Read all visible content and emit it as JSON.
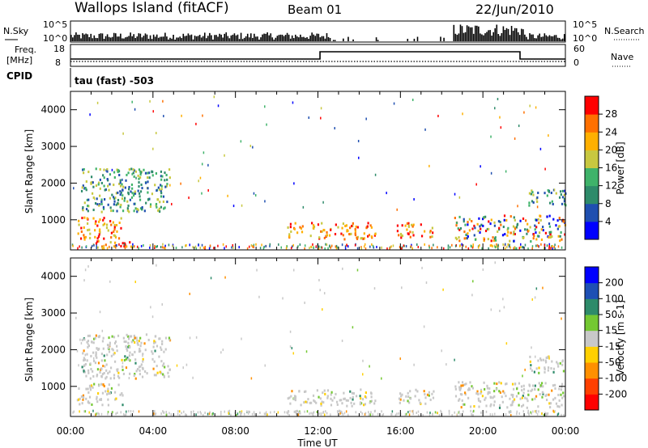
{
  "header": {
    "station": "Wallops Island (fitACF)",
    "beam": "Beam 01",
    "date": "22/Jun/2010"
  },
  "params": {
    "nsky_label": "N.Sky",
    "nsearch_label": "N.Search",
    "nsky_ticks": [
      "10^5",
      "10^0"
    ],
    "nsearch_ticks": [
      "10^5",
      "10^0"
    ],
    "freq_label_1": "Freq.",
    "freq_label_2": "[MHz]",
    "freq_ticks": [
      "18",
      "8"
    ],
    "nave_label": "Nave",
    "nave_ticks": [
      "60",
      "0"
    ],
    "cpid_label": "CPID",
    "cpid_text": "tau (fast) -503"
  },
  "chart_data": [
    {
      "type": "heatmap",
      "panel": "power",
      "ylabel": "Slant Range [km]",
      "yticks": [
        1000,
        2000,
        3000,
        4000
      ],
      "ylim": [
        180,
        4500
      ],
      "xlim": [
        0,
        24
      ],
      "xticks": [
        "00:00",
        "04:00",
        "08:00",
        "12:00",
        "16:00",
        "20:00",
        "00:00"
      ],
      "xlabel": "Time UT",
      "colorbar": {
        "label": "Power [dB]",
        "ticks": [
          "4",
          "8",
          "12",
          "16",
          "20",
          "24",
          "28"
        ],
        "colors": [
          "#0000ff",
          "#1f4fb0",
          "#2e8b6a",
          "#3fb36a",
          "#c8c840",
          "#ffb000",
          "#ff7000",
          "#ff0000"
        ]
      },
      "echo_regions": [
        {
          "t0": 0.3,
          "t1": 2.5,
          "r0": 450,
          "r1": 1050,
          "level": "high"
        },
        {
          "t0": 0.5,
          "t1": 4.8,
          "r0": 1200,
          "r1": 2400,
          "level": "mid"
        },
        {
          "t0": 1.2,
          "t1": 3.0,
          "r0": 220,
          "r1": 420,
          "level": "high"
        },
        {
          "t0": 10.5,
          "t1": 14.8,
          "r0": 450,
          "r1": 900,
          "level": "high"
        },
        {
          "t0": 15.8,
          "t1": 17.6,
          "r0": 500,
          "r1": 900,
          "level": "high"
        },
        {
          "t0": 18.6,
          "t1": 24.0,
          "r0": 400,
          "r1": 1100,
          "level": "mixed"
        },
        {
          "t0": 22.2,
          "t1": 24.0,
          "r0": 1350,
          "r1": 1800,
          "level": "mid"
        }
      ]
    },
    {
      "type": "heatmap",
      "panel": "velocity",
      "ylabel": "Slant Range [km]",
      "yticks": [
        1000,
        2000,
        3000,
        4000
      ],
      "ylim": [
        180,
        4500
      ],
      "xlim": [
        0,
        24
      ],
      "xticks": [
        "00:00",
        "04:00",
        "08:00",
        "12:00",
        "16:00",
        "20:00",
        "00:00"
      ],
      "xlabel": "Time UT",
      "colorbar": {
        "label": "Velocity [m s-1]",
        "ticks": [
          "200",
          "100",
          "50",
          "15",
          "-15",
          "-50",
          "-100",
          "-200"
        ],
        "colors": [
          "#0000ff",
          "#1e50b4",
          "#2e8b6a",
          "#74c832",
          "#c8c8c8",
          "#ffd000",
          "#ff9000",
          "#ff4000",
          "#ff0000"
        ]
      },
      "echo_regions": [
        {
          "t0": 0.3,
          "t1": 2.5,
          "r0": 450,
          "r1": 1050,
          "level": "ground"
        },
        {
          "t0": 0.5,
          "t1": 4.8,
          "r0": 1200,
          "r1": 2400,
          "level": "ground"
        },
        {
          "t0": 10.5,
          "t1": 14.8,
          "r0": 450,
          "r1": 900,
          "level": "ground"
        },
        {
          "t0": 15.8,
          "t1": 17.6,
          "r0": 500,
          "r1": 900,
          "level": "ground"
        },
        {
          "t0": 18.6,
          "t1": 24.0,
          "r0": 400,
          "r1": 1100,
          "level": "ground"
        },
        {
          "t0": 22.2,
          "t1": 24.0,
          "r0": 1350,
          "r1": 1800,
          "level": "ground"
        }
      ]
    }
  ]
}
